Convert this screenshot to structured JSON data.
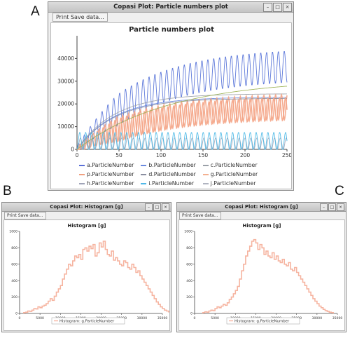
{
  "labels": {
    "A": "A",
    "B": "B",
    "C": "C"
  },
  "window_a": {
    "title": "Copasi Plot: Particle numbers plot",
    "menu": "Print Save data...",
    "plot_title": "Particle numbers plot",
    "legend": [
      {
        "label": "a.ParticleNumber",
        "color": "#5a6fd8"
      },
      {
        "label": "b.ParticleNumber",
        "color": "#6a8ae0"
      },
      {
        "label": "c.ParticleNumber",
        "color": "#9aa0a8"
      },
      {
        "label": "p.ParticleNumber",
        "color": "#f0a080"
      },
      {
        "label": "d.ParticleNumber",
        "color": "#8a8ea0"
      },
      {
        "label": "g.ParticleNumber",
        "color": "#f4b090"
      },
      {
        "label": "h.ParticleNumber",
        "color": "#a0a4b8"
      },
      {
        "label": "i.ParticleNumber",
        "color": "#50b8e8"
      },
      {
        "label": "j.ParticleNumber",
        "color": "#b0b4c0"
      }
    ]
  },
  "window_b": {
    "title": "Copasi Plot: Histogram [g]",
    "menu": "Print Save data...",
    "plot_title": "Histogram [g]",
    "legend": "Histogram: g.ParticleNumber"
  },
  "window_c": {
    "title": "Copasi Plot: Histogram [g]",
    "menu": "Print Save data...",
    "plot_title": "Histogram [g]",
    "legend": "Histogram: g.ParticleNumber"
  },
  "colors": {
    "oscillation": "#f4a486",
    "histogram": "#f6b4a0",
    "growth_blue": "#4d6ad6",
    "green": "#9ab050",
    "cyan": "#44b6e6"
  },
  "chart_data": [
    {
      "type": "line",
      "title": "Particle numbers plot",
      "xlabel": "",
      "ylabel": "",
      "xlim": [
        0,
        250
      ],
      "ylim": [
        0,
        50000
      ],
      "x_ticks": [
        0,
        50,
        100,
        150,
        200,
        250
      ],
      "y_ticks": [
        0,
        10000,
        20000,
        30000,
        40000
      ],
      "grid": false,
      "legend_position": "bottom",
      "series": [
        {
          "name": "a.ParticleNumber",
          "shape": "oscillating growth",
          "baseline_end": 38000,
          "amplitude_end": 7000,
          "period": 7
        },
        {
          "name": "b.ParticleNumber",
          "shape": "saturating",
          "end": 23000
        },
        {
          "name": "c.ParticleNumber",
          "shape": "saturating",
          "end": 24500
        },
        {
          "name": "p.ParticleNumber",
          "shape": "oscillating",
          "baseline_end": 19500,
          "amplitude_end": 5500,
          "period": 7
        },
        {
          "name": "d.ParticleNumber",
          "shape": "saturating",
          "end": 22500
        },
        {
          "name": "g.ParticleNumber",
          "shape": "oscillating",
          "baseline_end": 18500,
          "amplitude_end": 5000,
          "period": 7
        },
        {
          "name": "h.ParticleNumber",
          "shape": "oscillating low",
          "baseline": 2500,
          "amplitude": 2500,
          "period": 7
        },
        {
          "name": "i.ParticleNumber",
          "shape": "oscillating low",
          "baseline": 3500,
          "amplitude": 4000,
          "period": 7
        },
        {
          "name": "j.ParticleNumber",
          "shape": "saturating",
          "end": 31000
        }
      ]
    },
    {
      "type": "bar",
      "title": "Histogram [g]",
      "legend": "Histogram: g.ParticleNumber",
      "xlim": [
        0,
        35000
      ],
      "ylim": [
        0,
        1000
      ],
      "x_ticks": [
        0,
        5000,
        10000,
        15000,
        20000,
        25000,
        30000,
        35000
      ],
      "y_ticks": [
        0,
        200,
        400,
        600,
        800,
        1000
      ],
      "bin_width": 500,
      "bin_start": 1000,
      "counts": [
        10,
        15,
        30,
        25,
        40,
        60,
        55,
        80,
        70,
        90,
        100,
        120,
        150,
        180,
        160,
        210,
        260,
        300,
        340,
        420,
        480,
        540,
        600,
        580,
        640,
        700,
        680,
        720,
        660,
        780,
        800,
        760,
        820,
        790,
        840,
        700,
        740,
        860,
        810,
        880,
        780,
        720,
        700,
        760,
        650,
        680,
        640,
        600,
        580,
        640,
        620,
        560,
        540,
        600,
        560,
        500,
        520,
        460,
        420,
        380,
        340,
        300,
        260,
        220,
        180,
        140,
        110,
        80,
        60,
        40,
        30,
        20,
        12,
        8
      ]
    },
    {
      "type": "bar",
      "title": "Histogram [g]",
      "legend": "Histogram: g.ParticleNumber",
      "xlim": [
        0,
        35000
      ],
      "ylim": [
        0,
        1000
      ],
      "x_ticks": [
        0,
        5000,
        10000,
        15000,
        20000,
        25000,
        30000,
        35000
      ],
      "y_ticks": [
        0,
        200,
        400,
        600,
        800,
        1000
      ],
      "bin_width": 500,
      "bin_start": 2000,
      "counts": [
        10,
        20,
        15,
        30,
        40,
        35,
        60,
        80,
        70,
        90,
        110,
        100,
        130,
        170,
        200,
        240,
        280,
        330,
        420,
        520,
        600,
        700,
        760,
        820,
        880,
        900,
        860,
        780,
        840,
        800,
        720,
        760,
        700,
        680,
        740,
        660,
        700,
        640,
        620,
        660,
        600,
        580,
        620,
        540,
        520,
        560,
        500,
        460,
        420,
        380,
        340,
        300,
        260,
        220,
        180,
        150,
        120,
        90,
        70,
        50,
        35,
        25,
        15,
        10
      ]
    }
  ]
}
